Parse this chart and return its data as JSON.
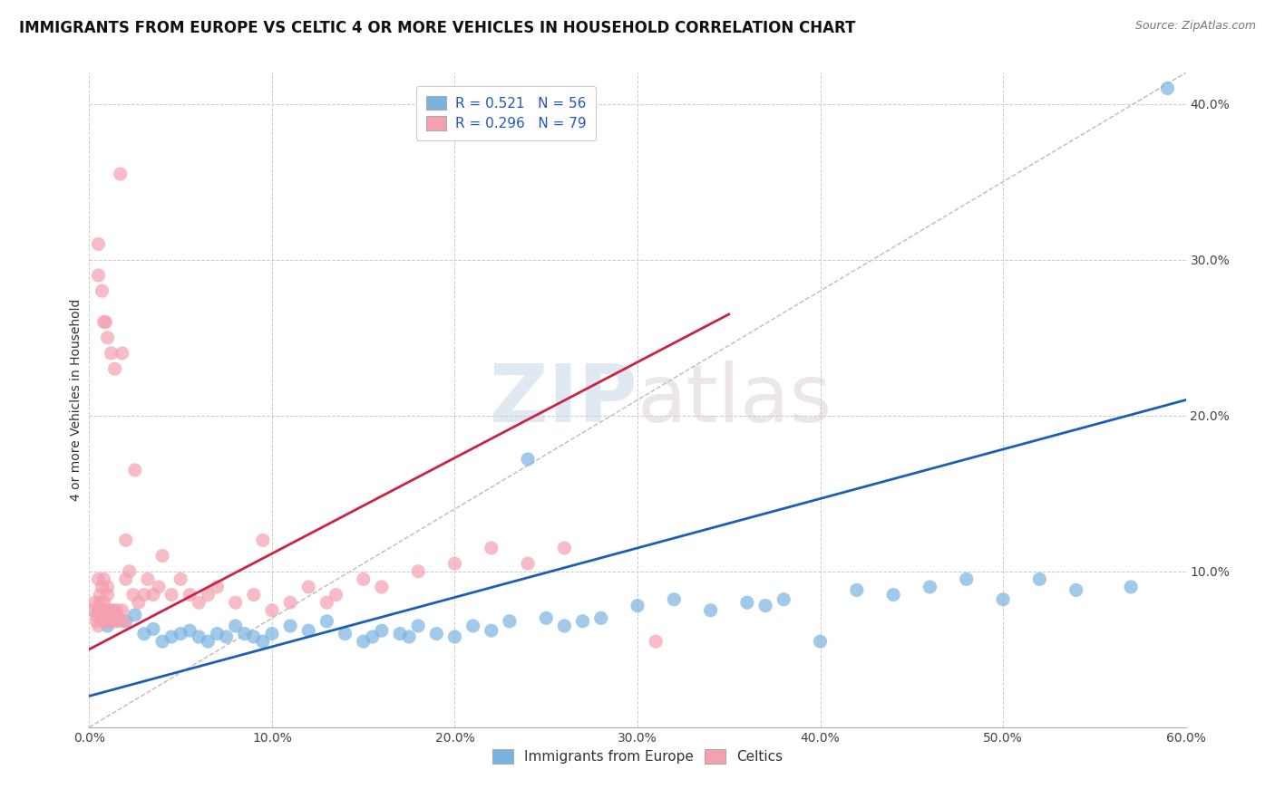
{
  "title": "IMMIGRANTS FROM EUROPE VS CELTIC 4 OR MORE VEHICLES IN HOUSEHOLD CORRELATION CHART",
  "source": "Source: ZipAtlas.com",
  "ylabel": "4 or more Vehicles in Household",
  "legend_label1": "Immigrants from Europe",
  "legend_label2": "Celtics",
  "R1": 0.521,
  "N1": 56,
  "R2": 0.296,
  "N2": 79,
  "xlim": [
    0.0,
    0.6
  ],
  "ylim": [
    0.0,
    0.42
  ],
  "background_color": "#ffffff",
  "scatter_color_blue": "#7ab3e0",
  "scatter_color_pink": "#f4a0b0",
  "line_color_blue": "#1a5fb4",
  "line_color_pink": "#cc2244",
  "diag_color": "#bbbbbb",
  "blue_points_x": [
    0.005,
    0.01,
    0.015,
    0.02,
    0.025,
    0.03,
    0.035,
    0.04,
    0.045,
    0.05,
    0.055,
    0.06,
    0.065,
    0.07,
    0.075,
    0.08,
    0.085,
    0.09,
    0.095,
    0.1,
    0.11,
    0.12,
    0.13,
    0.14,
    0.15,
    0.155,
    0.16,
    0.17,
    0.175,
    0.18,
    0.19,
    0.2,
    0.21,
    0.22,
    0.23,
    0.24,
    0.25,
    0.26,
    0.27,
    0.28,
    0.3,
    0.32,
    0.34,
    0.36,
    0.37,
    0.38,
    0.4,
    0.42,
    0.44,
    0.46,
    0.48,
    0.5,
    0.52,
    0.54,
    0.57,
    0.59
  ],
  "blue_points_y": [
    0.075,
    0.065,
    0.07,
    0.068,
    0.072,
    0.06,
    0.063,
    0.055,
    0.058,
    0.06,
    0.062,
    0.058,
    0.055,
    0.06,
    0.058,
    0.065,
    0.06,
    0.058,
    0.055,
    0.06,
    0.065,
    0.062,
    0.068,
    0.06,
    0.055,
    0.058,
    0.062,
    0.06,
    0.058,
    0.065,
    0.06,
    0.058,
    0.065,
    0.062,
    0.068,
    0.172,
    0.07,
    0.065,
    0.068,
    0.07,
    0.078,
    0.082,
    0.075,
    0.08,
    0.078,
    0.082,
    0.055,
    0.088,
    0.085,
    0.09,
    0.095,
    0.082,
    0.095,
    0.088,
    0.09,
    0.41
  ],
  "pink_points_x": [
    0.002,
    0.003,
    0.004,
    0.004,
    0.005,
    0.005,
    0.005,
    0.005,
    0.006,
    0.006,
    0.006,
    0.007,
    0.007,
    0.007,
    0.007,
    0.008,
    0.008,
    0.008,
    0.008,
    0.008,
    0.009,
    0.009,
    0.009,
    0.01,
    0.01,
    0.01,
    0.01,
    0.01,
    0.01,
    0.011,
    0.011,
    0.011,
    0.012,
    0.012,
    0.012,
    0.013,
    0.013,
    0.014,
    0.014,
    0.015,
    0.015,
    0.016,
    0.017,
    0.018,
    0.018,
    0.019,
    0.02,
    0.02,
    0.022,
    0.024,
    0.025,
    0.027,
    0.03,
    0.032,
    0.035,
    0.038,
    0.04,
    0.045,
    0.05,
    0.055,
    0.06,
    0.065,
    0.07,
    0.08,
    0.09,
    0.095,
    0.1,
    0.11,
    0.12,
    0.13,
    0.135,
    0.15,
    0.16,
    0.18,
    0.2,
    0.22,
    0.24,
    0.26,
    0.31
  ],
  "pink_points_y": [
    0.075,
    0.08,
    0.068,
    0.072,
    0.29,
    0.31,
    0.095,
    0.065,
    0.075,
    0.08,
    0.085,
    0.07,
    0.28,
    0.075,
    0.09,
    0.26,
    0.08,
    0.075,
    0.068,
    0.095,
    0.072,
    0.26,
    0.075,
    0.068,
    0.072,
    0.075,
    0.25,
    0.085,
    0.09,
    0.068,
    0.072,
    0.075,
    0.24,
    0.068,
    0.072,
    0.07,
    0.075,
    0.23,
    0.068,
    0.072,
    0.075,
    0.068,
    0.355,
    0.24,
    0.075,
    0.068,
    0.095,
    0.12,
    0.1,
    0.085,
    0.165,
    0.08,
    0.085,
    0.095,
    0.085,
    0.09,
    0.11,
    0.085,
    0.095,
    0.085,
    0.08,
    0.085,
    0.09,
    0.08,
    0.085,
    0.12,
    0.075,
    0.08,
    0.09,
    0.08,
    0.085,
    0.095,
    0.09,
    0.1,
    0.105,
    0.115,
    0.105,
    0.115,
    0.055
  ],
  "watermark_zip": "ZIP",
  "watermark_atlas": "atlas",
  "title_fontsize": 12,
  "axis_label_fontsize": 10,
  "tick_fontsize": 10,
  "legend_fontsize": 11
}
